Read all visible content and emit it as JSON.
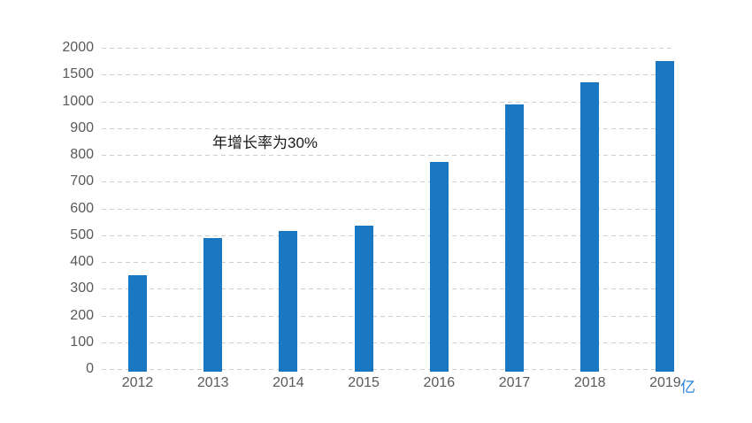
{
  "chart_data": {
    "type": "bar",
    "title": "",
    "xlabel": "",
    "ylabel": "",
    "categories": [
      "2012",
      "2013",
      "2014",
      "2015",
      "2016",
      "2017",
      "2018",
      "2019"
    ],
    "values": [
      350,
      490,
      515,
      535,
      775,
      990,
      1350,
      1760
    ],
    "y_ticks": [
      0,
      100,
      200,
      300,
      400,
      500,
      600,
      700,
      800,
      900,
      1000,
      1500,
      2000
    ],
    "y_axis_type": "non-linear (all ticks equally spaced, 100-steps up to 1000 then 500-steps)",
    "grid": "horizontal dashed gridlines only, no solid axis lines",
    "legend": "none",
    "annotation": "年增长率为30%",
    "unit_label": "亿",
    "colors": {
      "bar": "#1A77C2",
      "unit_label": "#2680D9",
      "gridline": "#CFCFCF",
      "axis_text": "#595959",
      "annotation_text": "#1A1A1A",
      "background": "#FFFFFF"
    }
  }
}
